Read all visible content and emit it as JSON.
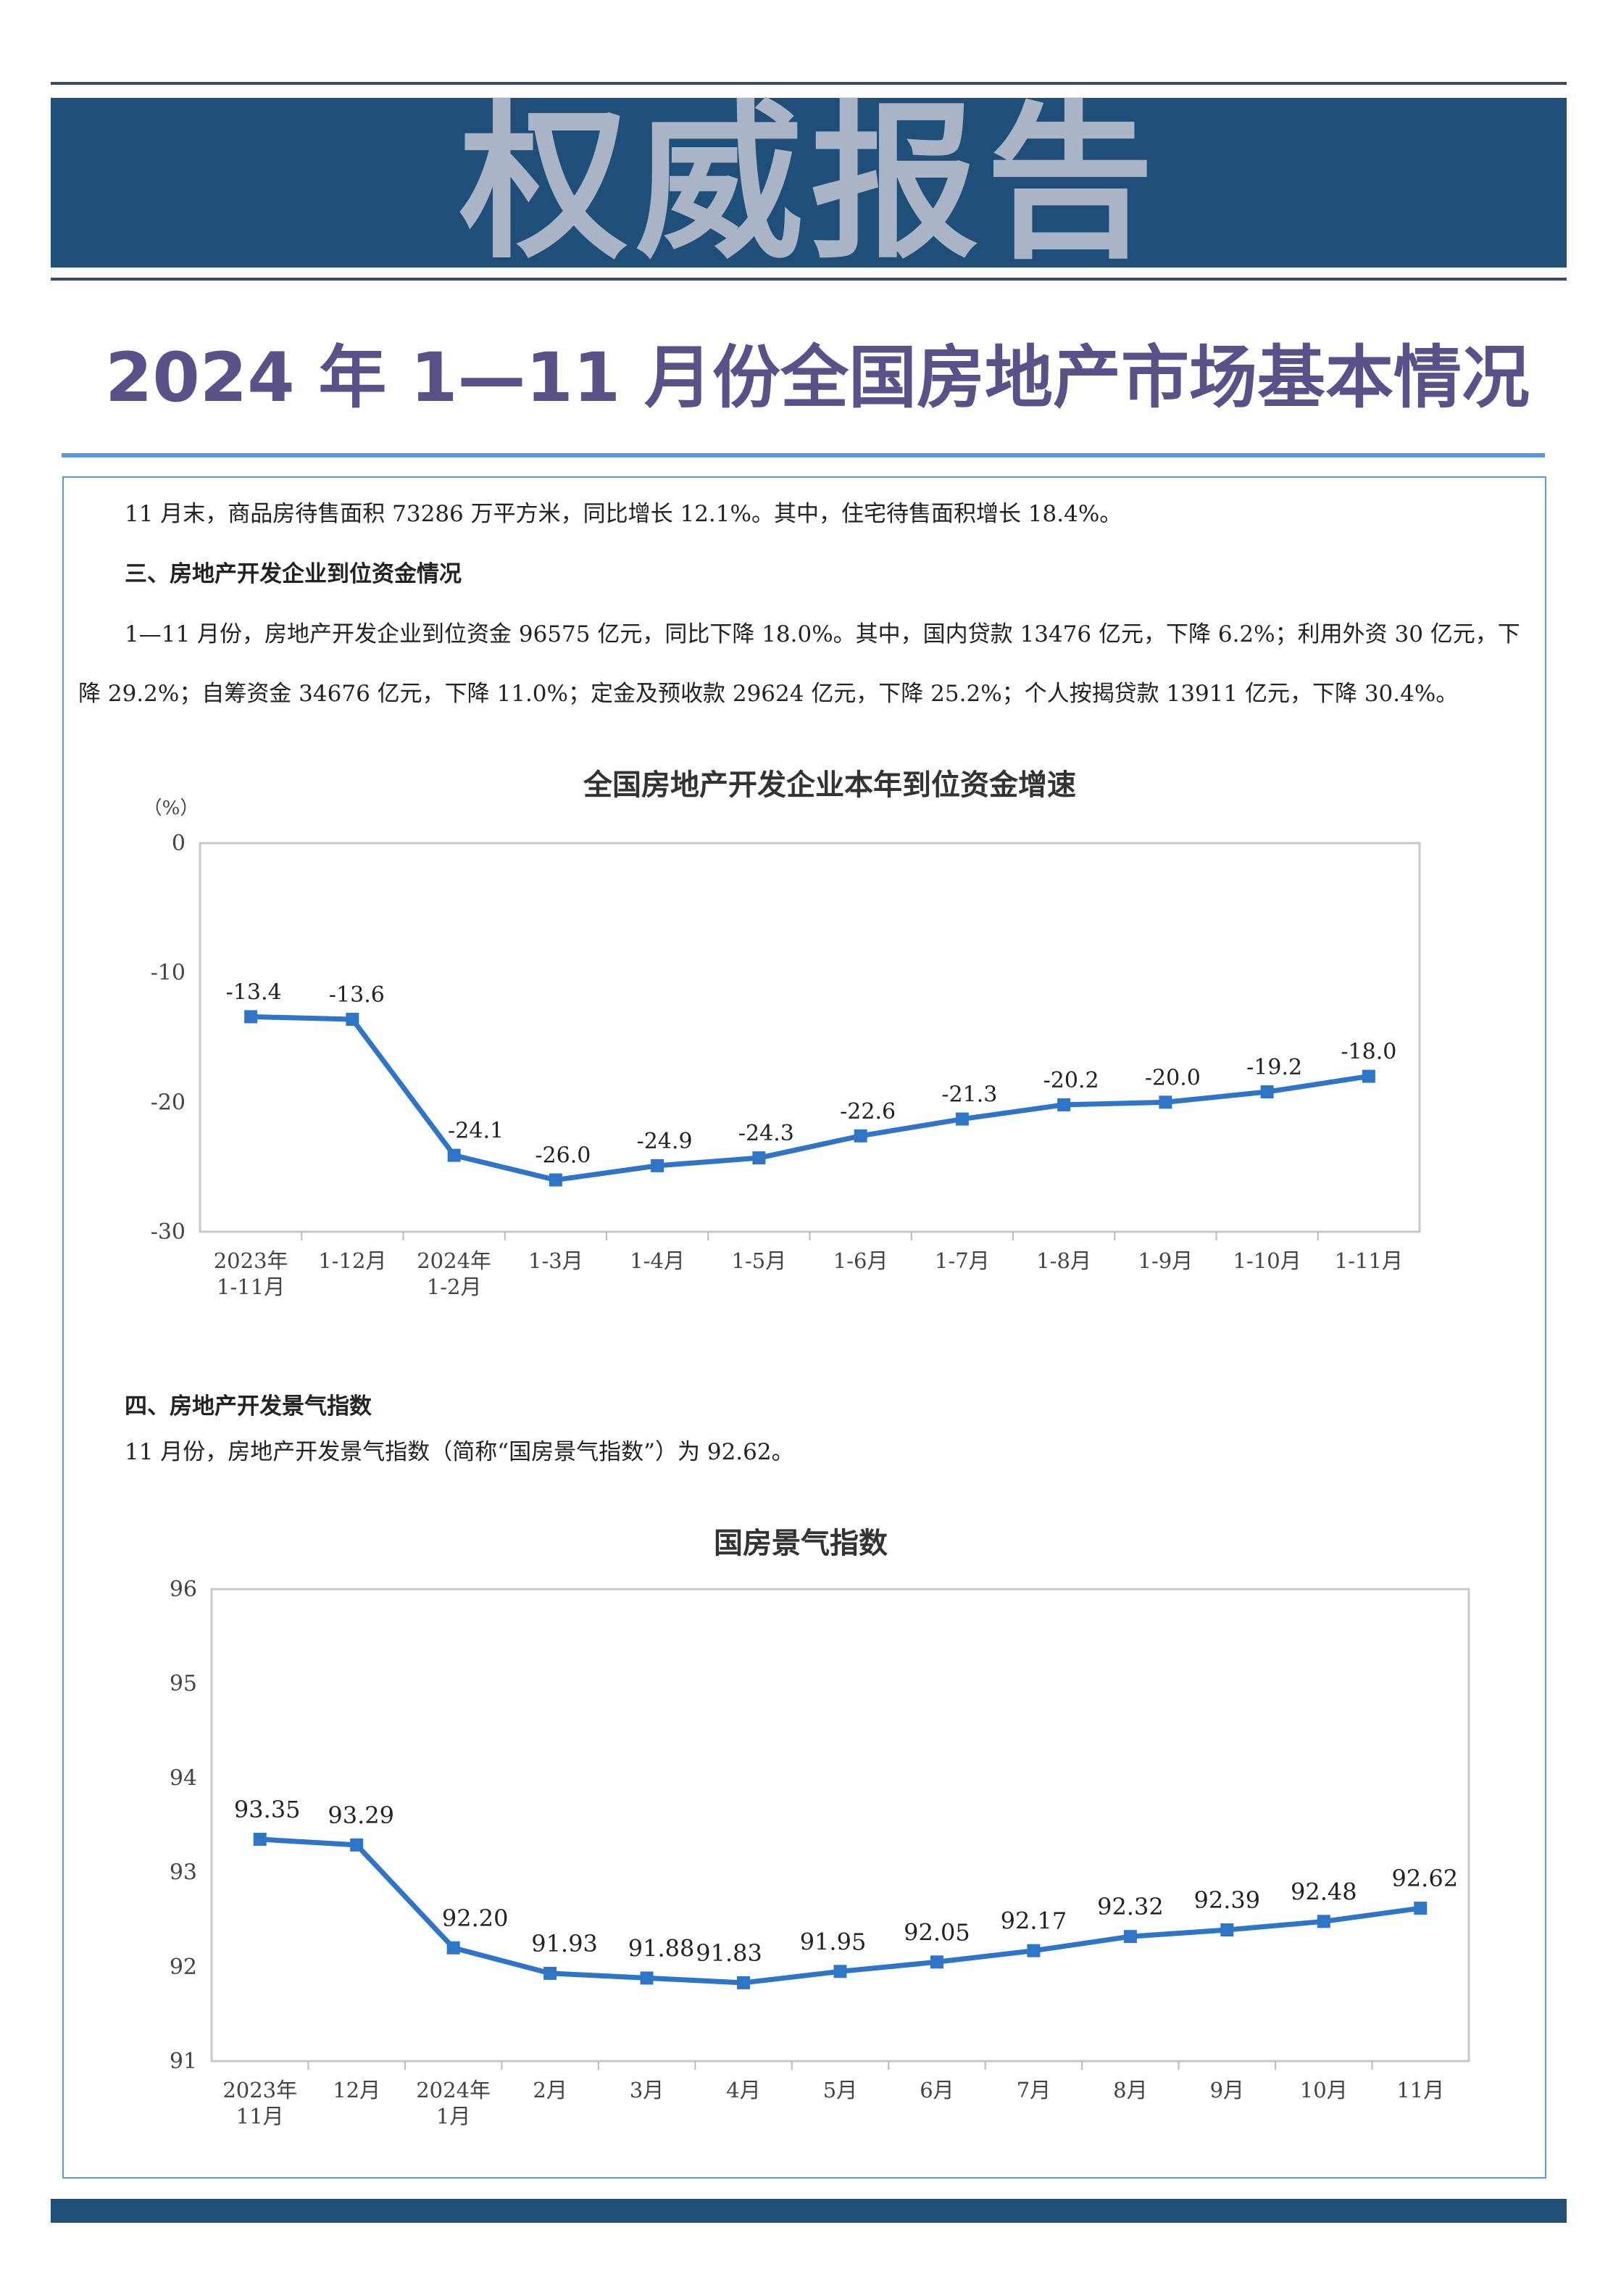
{
  "header": {
    "banner_title": "权威报告",
    "doc_title": "2024 年 1—11 月份全国房地产市场基本情况"
  },
  "body": {
    "para1": "11 月末，商品房待售面积 73286 万平方米，同比增长 12.1%。其中，住宅待售面积增长 18.4%。",
    "heading3": "三、房地产开发企业到位资金情况",
    "para2_line1": "1—11 月份，房地产开发企业到位资金 96575 亿元，同比下降 18.0%。其中，国内贷款 13476 亿元，下降 6.2%；利用外资 30 亿元，下",
    "para2_line2": "降 29.2%；自筹资金 34676 亿元，下降 11.0%；定金及预收款 29624 亿元，下降 25.2%；个人按揭贷款 13911 亿元，下降 30.4%。",
    "heading4": "四、房地产开发景气指数",
    "para3": "11 月份，房地产开发景气指数（简称“国房景气指数”）为 92.62。"
  },
  "colors": {
    "banner": "#1f4e79",
    "series": "#2e75c8",
    "title": "#5b5189",
    "rule": "#5b9bd5"
  },
  "chart_data": [
    {
      "type": "line",
      "title": "全国房地产开发企业本年到位资金增速",
      "ylabel": "（%）",
      "categories": [
        [
          "2023年",
          "1-11月"
        ],
        [
          "1-12月"
        ],
        [
          "2024年",
          "1-2月"
        ],
        [
          "1-3月"
        ],
        [
          "1-4月"
        ],
        [
          "1-5月"
        ],
        [
          "1-6月"
        ],
        [
          "1-7月"
        ],
        [
          "1-8月"
        ],
        [
          "1-9月"
        ],
        [
          "1-10月"
        ],
        [
          "1-11月"
        ]
      ],
      "values": [
        -13.4,
        -13.6,
        -24.1,
        -26.0,
        -24.9,
        -24.3,
        -22.6,
        -21.3,
        -20.2,
        -20.0,
        -19.2,
        -18.0
      ],
      "data_labels": [
        "-13.4",
        "-13.6",
        "-24.1",
        "-26.0",
        "-24.9",
        "-24.3",
        "-22.6",
        "-21.3",
        "-20.2",
        "-20.0",
        "-19.2",
        "-18.0"
      ],
      "yticks": [
        "0",
        "-10",
        "-20",
        "-30"
      ],
      "ylim": [
        -30,
        0
      ],
      "grid": false,
      "marker": "square"
    },
    {
      "type": "line",
      "title": "国房景气指数",
      "categories": [
        [
          "2023年",
          "11月"
        ],
        [
          "12月"
        ],
        [
          "2024年",
          "1月"
        ],
        [
          "2月"
        ],
        [
          "3月"
        ],
        [
          "4月"
        ],
        [
          "5月"
        ],
        [
          "6月"
        ],
        [
          "7月"
        ],
        [
          "8月"
        ],
        [
          "9月"
        ],
        [
          "10月"
        ],
        [
          "11月"
        ]
      ],
      "values": [
        93.35,
        93.29,
        92.2,
        91.93,
        91.88,
        91.83,
        91.95,
        92.05,
        92.17,
        92.32,
        92.39,
        92.48,
        92.62
      ],
      "data_labels": [
        "93.35",
        "93.29",
        "92.20",
        "91.93",
        "91.88",
        "91.83",
        "91.95",
        "92.05",
        "92.17",
        "92.32",
        "92.39",
        "92.48",
        "92.62"
      ],
      "yticks": [
        "96",
        "95",
        "94",
        "93",
        "92",
        "91"
      ],
      "ylim": [
        91,
        96
      ],
      "grid": false,
      "marker": "square"
    }
  ]
}
